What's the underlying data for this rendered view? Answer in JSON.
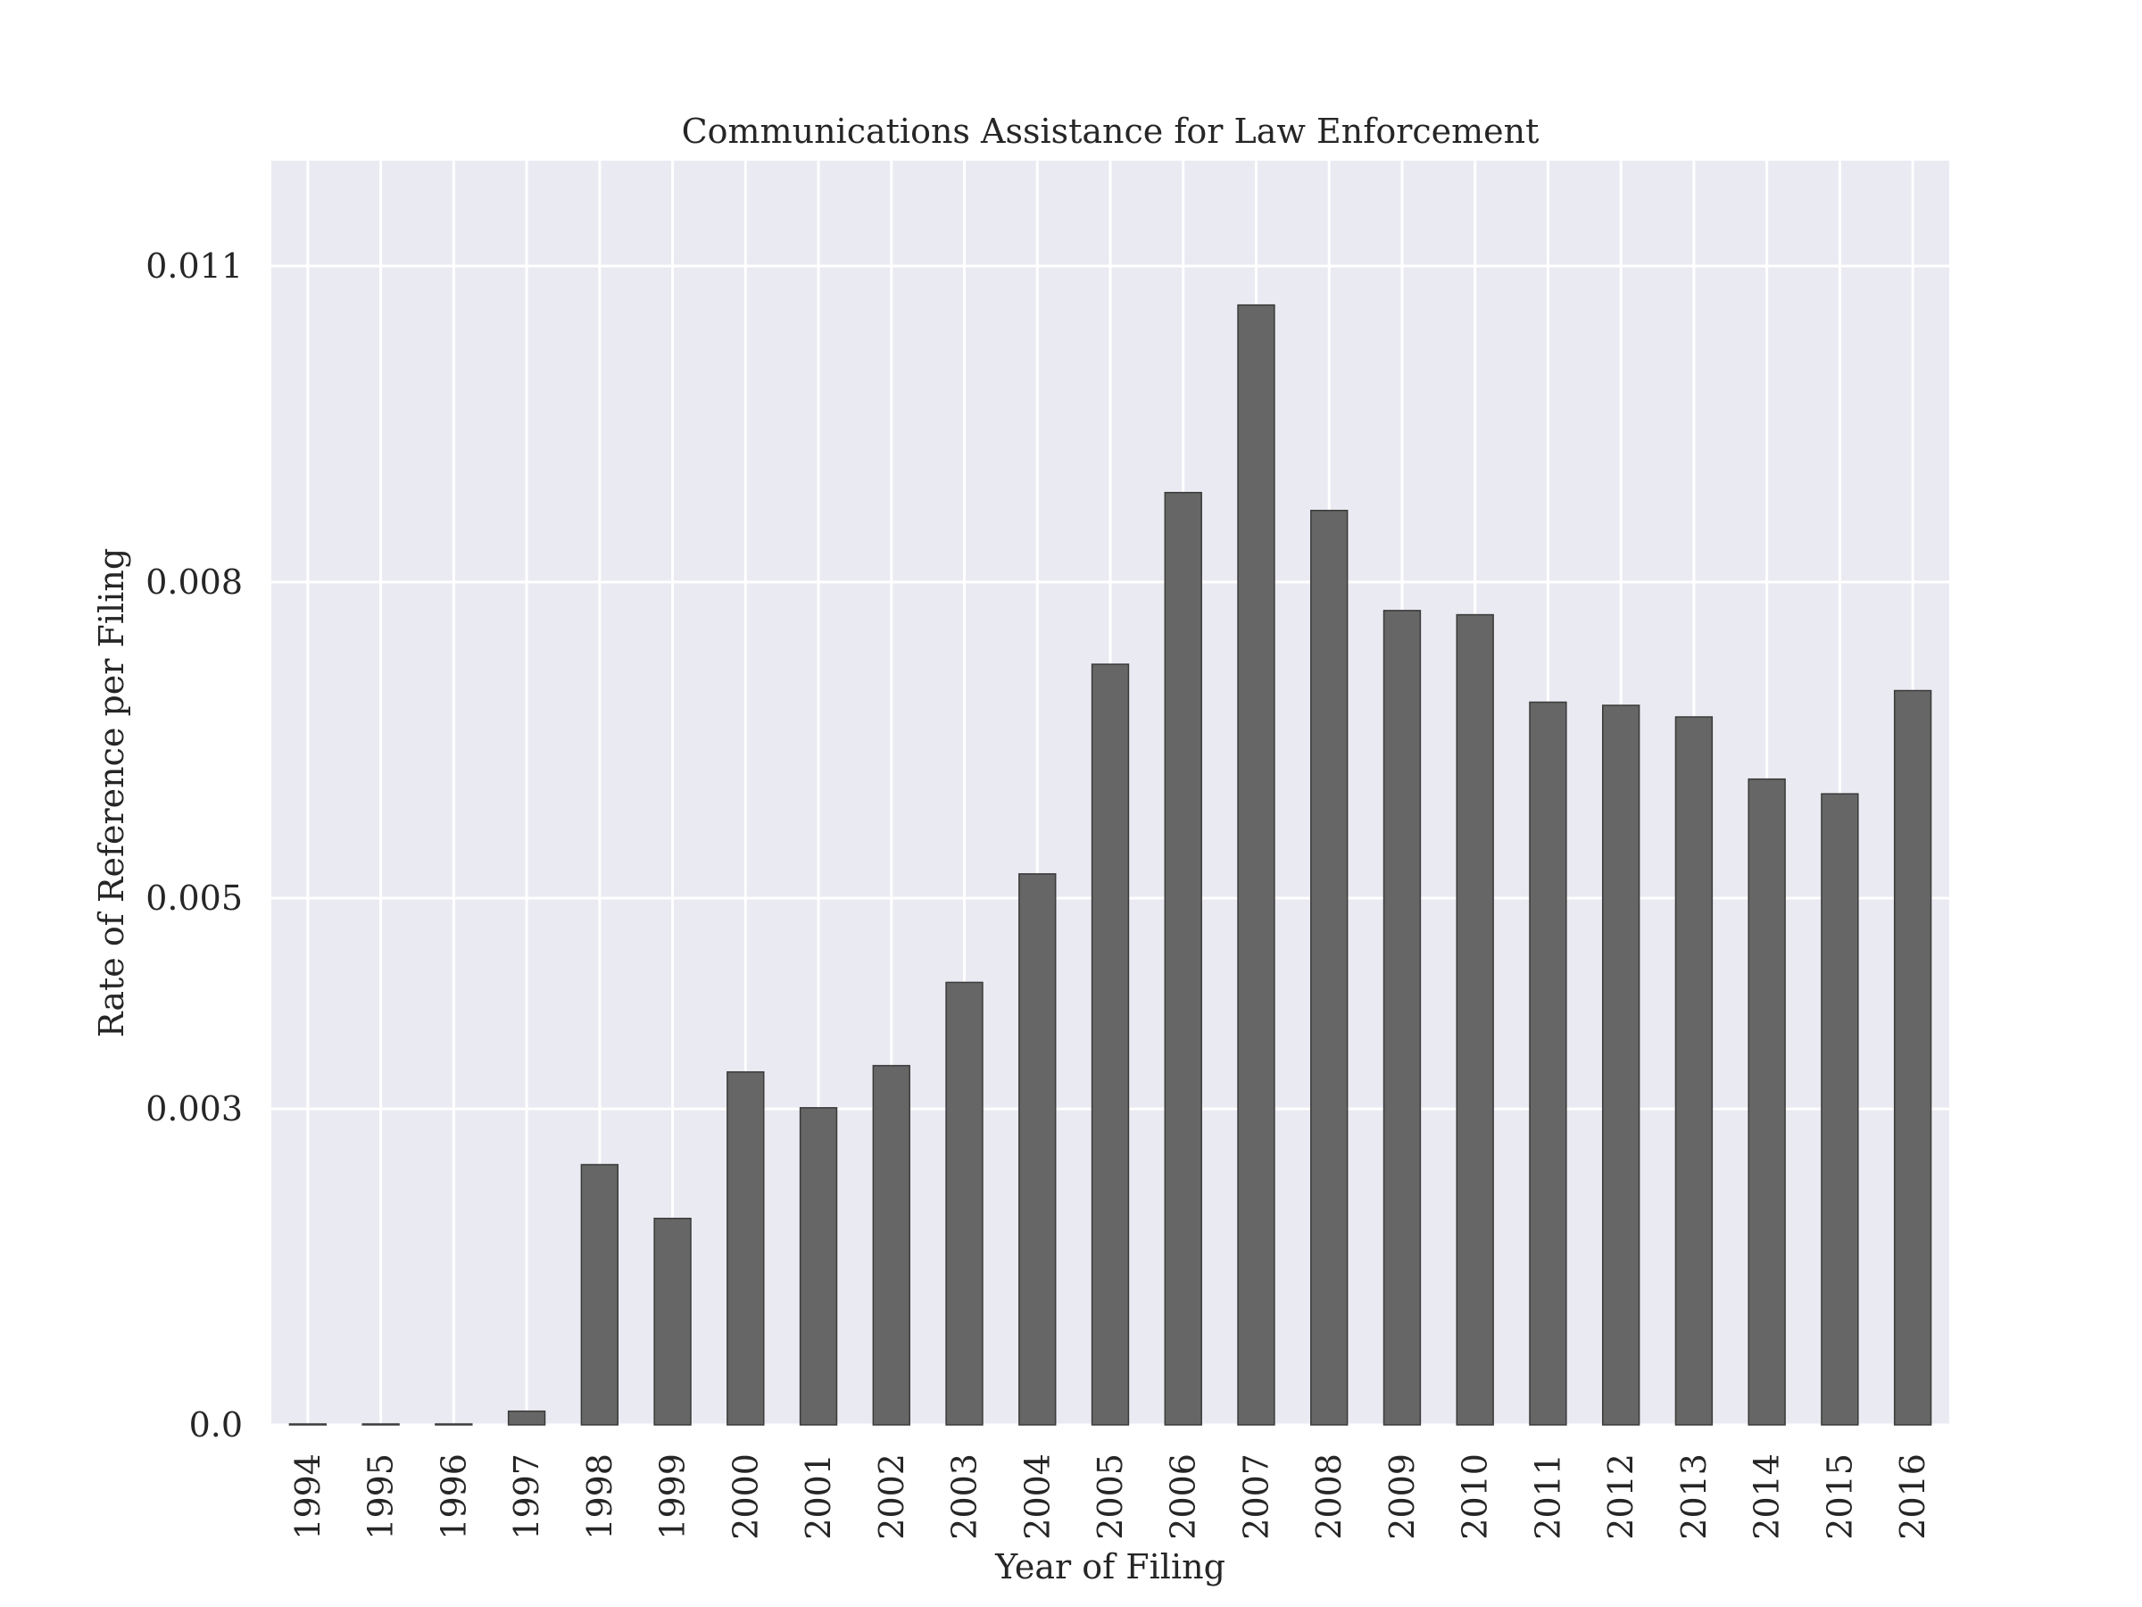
{
  "chart_data": {
    "type": "bar",
    "title": "Communications Assistance for Law Enforcement",
    "xlabel": "Year of Filing",
    "ylabel": "Rate of Reference per Filing",
    "categories": [
      "1994",
      "1995",
      "1996",
      "1997",
      "1998",
      "1999",
      "2000",
      "2001",
      "2002",
      "2003",
      "2004",
      "2005",
      "2006",
      "2007",
      "2008",
      "2009",
      "2010",
      "2011",
      "2012",
      "2013",
      "2014",
      "2015",
      "2016"
    ],
    "values": [
      0.0,
      0.0,
      0.0,
      0.00013,
      0.00247,
      0.00196,
      0.00335,
      0.00301,
      0.00341,
      0.0042,
      0.00523,
      0.00722,
      0.00885,
      0.01063,
      0.00868,
      0.00773,
      0.00769,
      0.00686,
      0.00683,
      0.00672,
      0.00613,
      0.00599,
      0.00697
    ],
    "yticks": [
      0.0,
      0.003,
      0.005,
      0.008,
      0.011
    ],
    "ytick_labels": [
      "0.0",
      "0.003",
      "0.005",
      "0.008",
      "0.011"
    ],
    "ylim": [
      0.0,
      0.012
    ],
    "grid": true,
    "colors": {
      "background": "#eaeaf2",
      "grid": "#ffffff",
      "bar_fill": "#666666",
      "bar_edge": "#3a3a3a",
      "text": "#262626"
    }
  }
}
